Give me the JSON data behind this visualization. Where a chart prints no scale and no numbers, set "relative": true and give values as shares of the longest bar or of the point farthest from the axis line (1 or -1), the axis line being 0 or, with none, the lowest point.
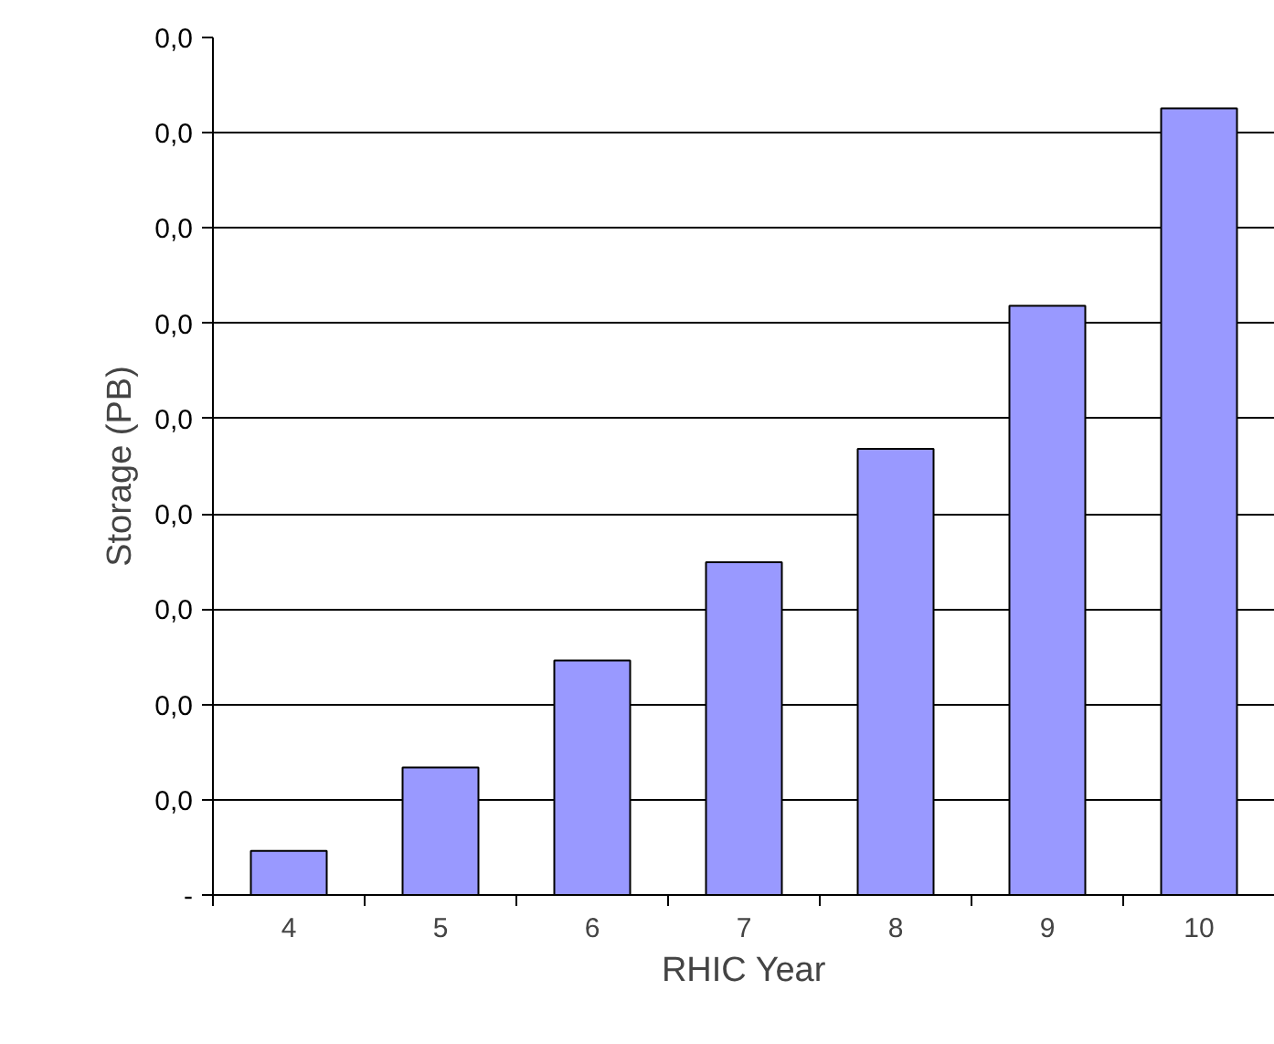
{
  "chart_data": {
    "type": "bar",
    "xlabel": "RHIC Year",
    "ylabel": "Storage (PB)",
    "categories": [
      "4",
      "5",
      "6",
      "7",
      "8",
      "9",
      "10"
    ],
    "values": [
      0.056,
      0.162,
      0.298,
      0.423,
      0.567,
      0.749,
      1
    ],
    "color": "#9999ff",
    "relative": true,
    "annotations": [
      "-",
      "0,0",
      "0,0",
      "0,0",
      "0,0",
      "0,0",
      "0,0",
      "0,0",
      "0,0",
      "0,0"
    ],
    "grid": "y"
  }
}
